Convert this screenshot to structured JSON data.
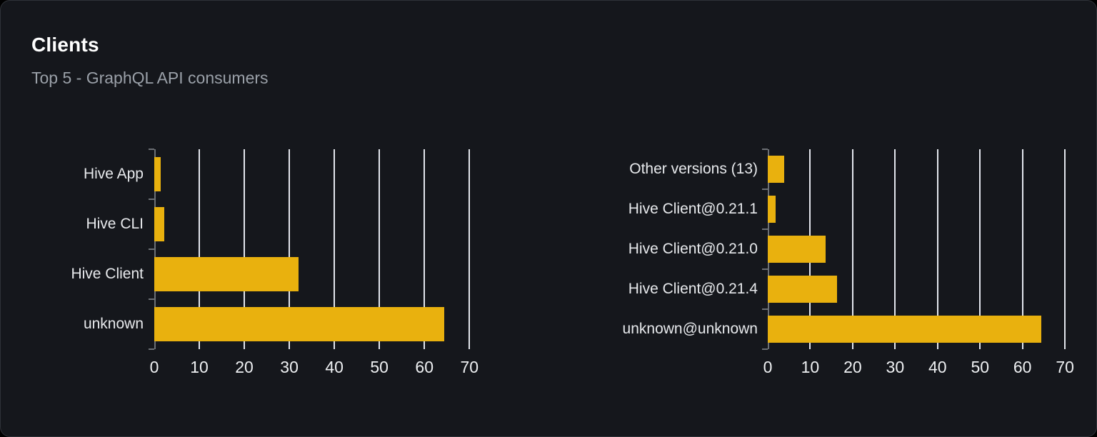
{
  "colors": {
    "page_bg": "#000000",
    "card_bg": "#15171c",
    "card_border": "#2f3238",
    "title_color": "#ffffff",
    "subtitle_color": "#9aa0a8",
    "label_color": "#e8eaed",
    "tick_label_color": "#eef0f2",
    "gridline_color": "#e3e6ed",
    "axis_color": "#6c7075",
    "bar_color": "#e9b10e"
  },
  "chart_data": {
    "title": "Clients",
    "subtitle": "Top 5 - GraphQL API consumers",
    "charts": [
      {
        "type": "bar",
        "orientation": "horizontal",
        "categories": [
          "Hive App",
          "Hive CLI",
          "Hive Client",
          "unknown"
        ],
        "values": [
          1.5,
          2.2,
          32,
          64.4
        ],
        "xticks": [
          0,
          10,
          20,
          30,
          40,
          50,
          60,
          70
        ],
        "xlim": [
          0,
          72.5
        ],
        "grid": true,
        "legend": false,
        "bar_color": "#e9b10e"
      },
      {
        "type": "bar",
        "orientation": "horizontal",
        "categories": [
          "Other versions (13)",
          "Hive Client@0.21.1",
          "Hive Client@0.21.0",
          "Hive Client@0.21.4",
          "unknown@unknown"
        ],
        "values": [
          3.9,
          1.8,
          13.7,
          16.4,
          64.4
        ],
        "xticks": [
          0,
          10,
          20,
          30,
          40,
          50,
          60,
          70
        ],
        "xlim": [
          0,
          72.5
        ],
        "grid": true,
        "legend": false,
        "bar_color": "#e9b10e"
      }
    ]
  }
}
